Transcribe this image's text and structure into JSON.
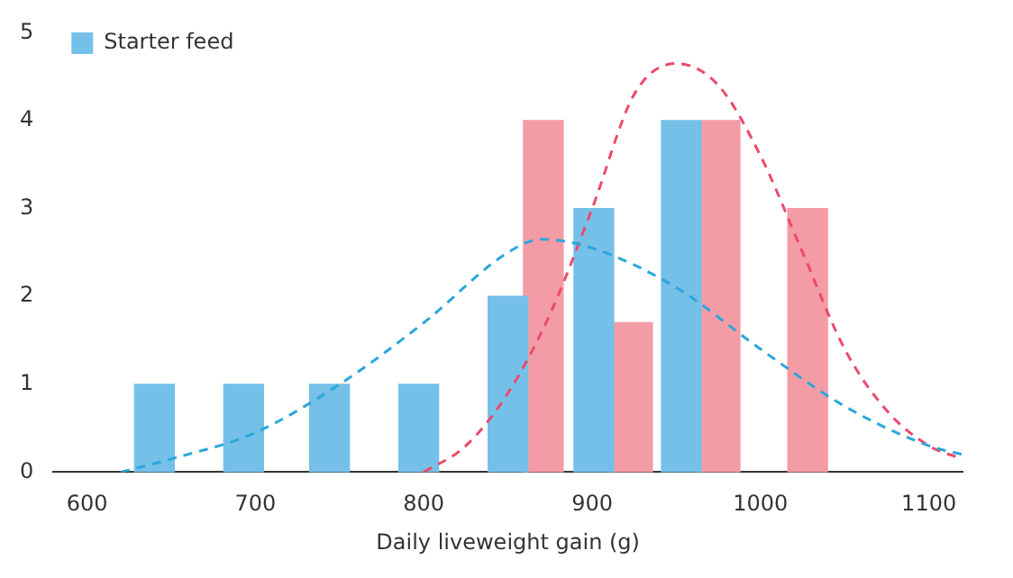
{
  "chart_data": {
    "type": "bar",
    "xlabel": "Daily liveweight gain (g)",
    "xlim": [
      580,
      1120
    ],
    "xticks": [
      600,
      700,
      800,
      900,
      1000,
      1100
    ],
    "ylim": [
      0,
      5
    ],
    "yticks": [
      0,
      1,
      2,
      3,
      4,
      5
    ],
    "grid": false,
    "legend": "top left",
    "series": [
      {
        "name": "Starter feed",
        "color": "#74c0e8",
        "x": [
          640,
          693,
          744,
          797,
          850,
          901,
          953
        ],
        "values": [
          1,
          1,
          1,
          1,
          2,
          3,
          4
        ]
      },
      {
        "color": "#f49ca5",
        "x": [
          871,
          924,
          976,
          1028
        ],
        "values": [
          4,
          1.7,
          4,
          3
        ]
      },
      {
        "type": "line",
        "line_style": "dashed",
        "marker": "none",
        "color": "#2aa7dc",
        "x": [
          620,
          650,
          700,
          750,
          800,
          850,
          870,
          900,
          950,
          1000,
          1050,
          1100,
          1120
        ],
        "values": [
          0,
          0.15,
          0.45,
          1.0,
          1.7,
          2.5,
          2.65,
          2.55,
          2.1,
          1.4,
          0.75,
          0.3,
          0.2
        ]
      },
      {
        "type": "line",
        "line_style": "dashed",
        "marker": "none",
        "color": "#ec4a6a",
        "x": [
          800,
          825,
          850,
          875,
          900,
          925,
          950,
          975,
          1000,
          1025,
          1050,
          1075,
          1100,
          1120
        ],
        "values": [
          0,
          0.3,
          0.9,
          1.8,
          3.0,
          4.3,
          4.65,
          4.4,
          3.6,
          2.5,
          1.4,
          0.7,
          0.3,
          0.15
        ]
      }
    ]
  }
}
